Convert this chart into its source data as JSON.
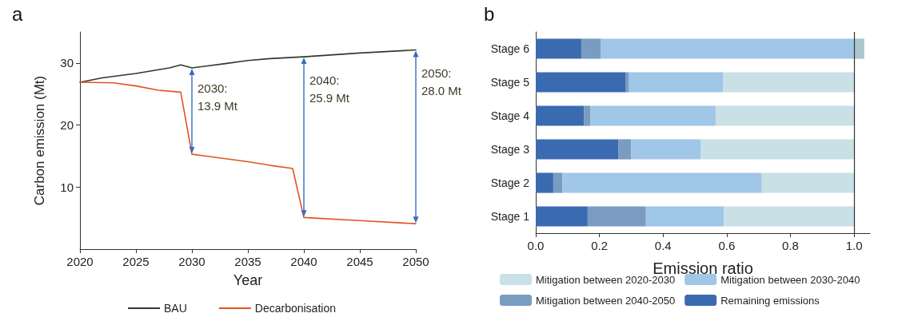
{
  "chart_data": [
    {
      "type": "line",
      "title": "a",
      "xlabel": "Year",
      "ylabel": "Carbon emission (Mt)",
      "xlim": [
        2020,
        2050
      ],
      "xticks": [
        2020,
        2025,
        2030,
        2035,
        2040,
        2045,
        2050
      ],
      "ylim": [
        0,
        35
      ],
      "yticks": [
        10,
        20,
        30
      ],
      "grid": false,
      "legend": "bottom",
      "marker": "none",
      "line_style": "solid",
      "series": [
        {
          "name": "BAU",
          "color": "#2f3a2a",
          "x": [
            2020,
            2022,
            2025,
            2028,
            2029,
            2030,
            2033,
            2035,
            2037,
            2040,
            2045,
            2050
          ],
          "values": [
            26.9,
            27.6,
            28.3,
            29.2,
            29.7,
            29.2,
            29.9,
            30.4,
            30.7,
            31.0,
            31.6,
            32.1
          ]
        },
        {
          "name": "Decarbonisation",
          "color": "#e0531f",
          "x": [
            2020,
            2023,
            2025,
            2027,
            2029,
            2030,
            2035,
            2037,
            2039,
            2040,
            2045,
            2050
          ],
          "values": [
            26.9,
            26.8,
            26.3,
            25.6,
            25.3,
            15.3,
            14.1,
            13.5,
            13.0,
            5.1,
            4.6,
            4.1
          ]
        }
      ],
      "annotations": [
        {
          "text": "2030:\n13.9 Mt",
          "x": 2030,
          "y": 29.2
        },
        {
          "text": "2040:\n25.9 Mt",
          "x": 2040,
          "y": 31.0
        },
        {
          "text": "2050:\n28.0 Mt",
          "x": 2050,
          "y": 32.1
        }
      ]
    },
    {
      "type": "bar",
      "title": "b",
      "xlabel": "Emission ratio",
      "orientation": "horizontal",
      "stacked": true,
      "categories": [
        "Stage 6",
        "Stage 5",
        "Stage 4",
        "Stage 3",
        "Stage 2",
        "Stage 1"
      ],
      "xlim": [
        0,
        1.05
      ],
      "xticks": [
        {
          "value": 0,
          "label": "0.0"
        },
        0.2,
        0.4,
        0.6,
        0.8,
        {
          "value": 1,
          "label": "1.0"
        }
      ],
      "grid": false,
      "legend": "bottom",
      "ref_lines": [
        {
          "axis": "x",
          "value": 1,
          "color": "#333333"
        }
      ],
      "series": [
        {
          "name": "Remaining emissions",
          "color": "#3a6bb0",
          "values": [
            0.143,
            0.283,
            0.152,
            0.259,
            0.055,
            0.163
          ]
        },
        {
          "name": "Mitigation between 2040-2050",
          "color": "#7a9cc2",
          "values": [
            0.062,
            0.01,
            0.019,
            0.041,
            0.029,
            0.183
          ]
        },
        {
          "name": "Mitigation between 2030-2040",
          "color": "#a0c6e8",
          "values": [
            0.795,
            0.295,
            0.394,
            0.219,
            0.626,
            0.245
          ]
        },
        {
          "name": "Mitigation between 2020-2030",
          "color": "#c9e0e6",
          "colors": [
            "#a9c7cc",
            "#c9e0e6",
            "#c9e0e6",
            "#c9e0e6",
            "#c9e0e6",
            "#c9e0e6"
          ],
          "values": [
            0.032,
            0.412,
            0.435,
            0.481,
            0.29,
            0.409
          ]
        }
      ]
    }
  ]
}
